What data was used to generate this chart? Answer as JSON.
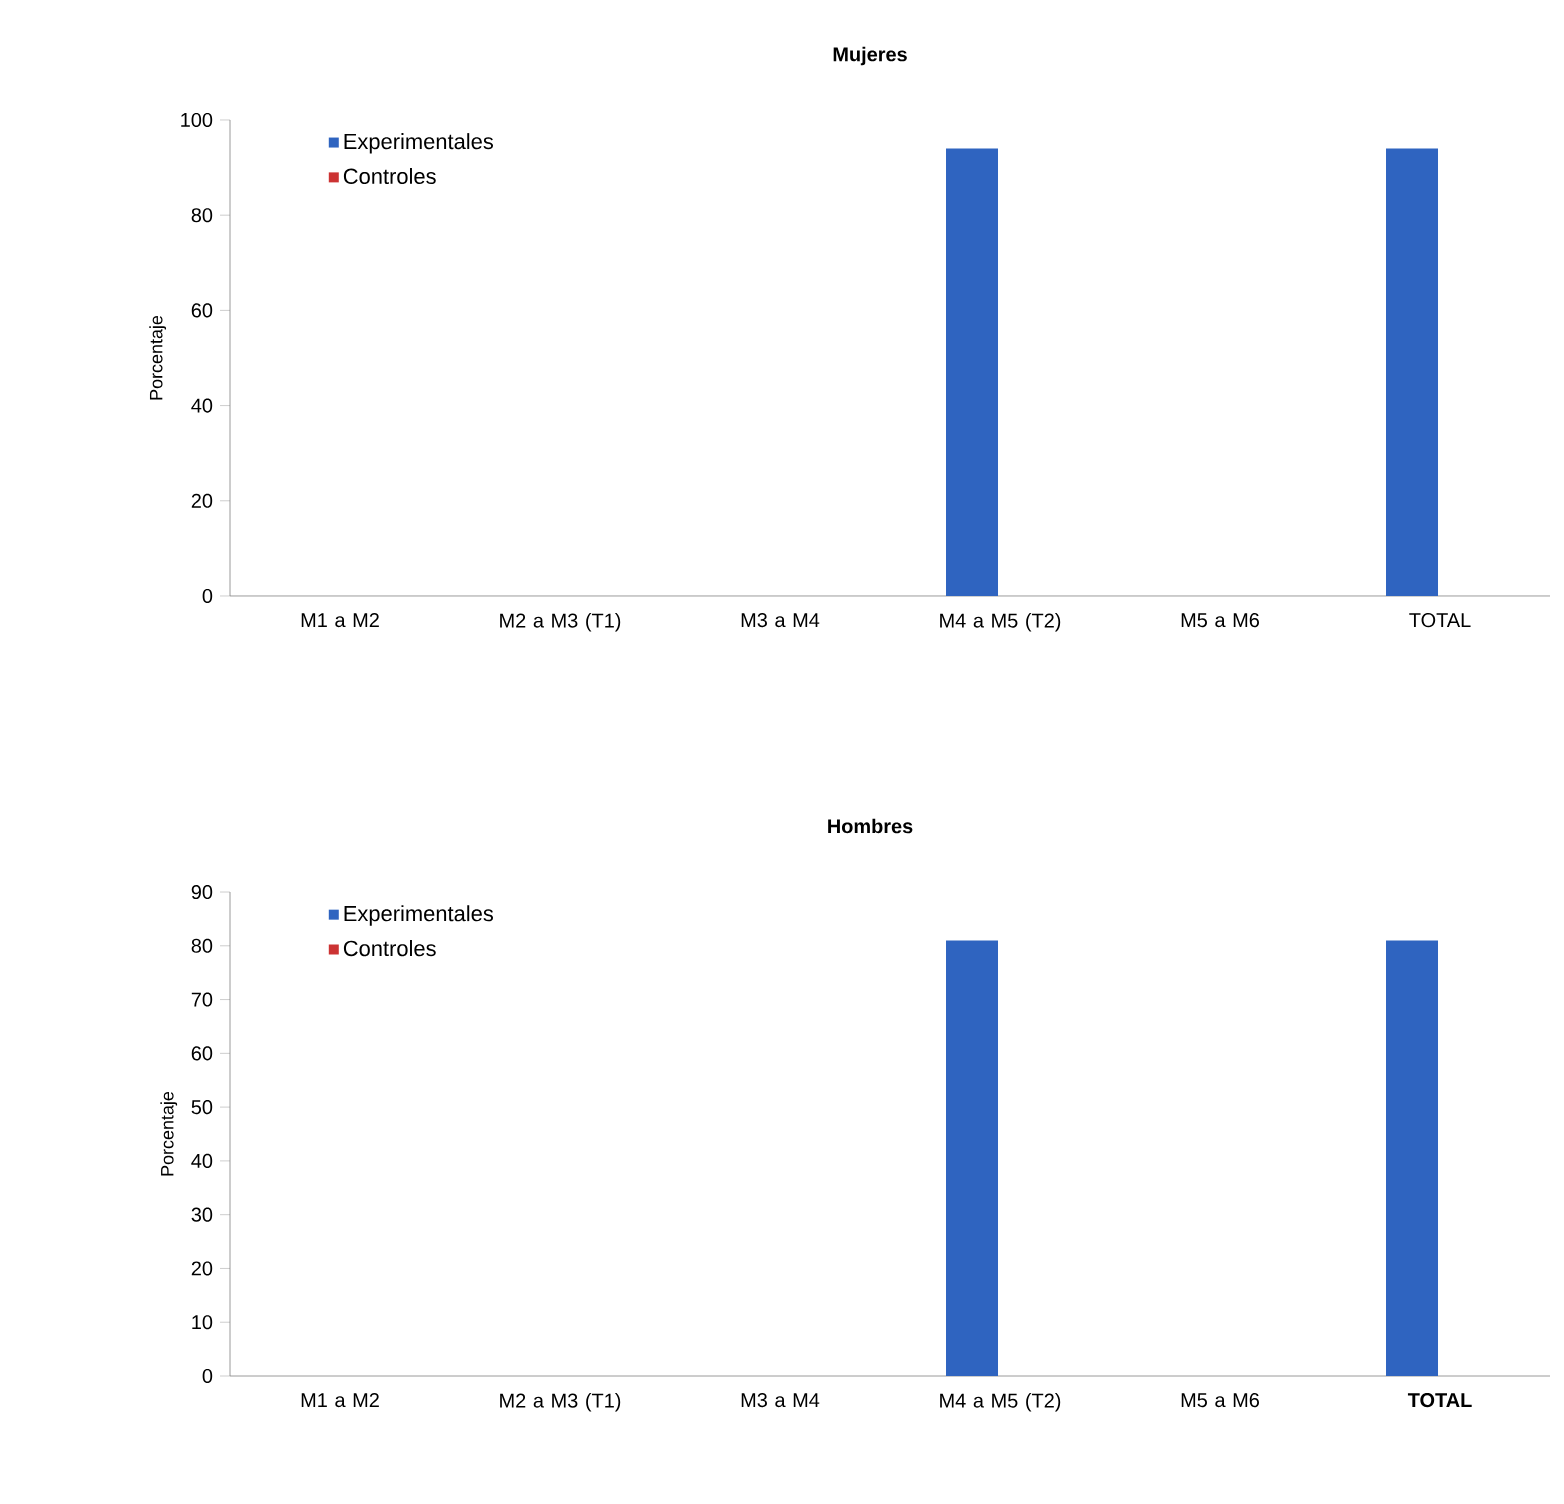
{
  "chart_data": [
    {
      "type": "bar",
      "title": "Mujeres",
      "ylabel": "Porcentaje",
      "categories": [
        "M1 a M2",
        "M2 a M3 (T1)",
        "M3 a M4",
        "M4 a M5 (T2)",
        "M5 a M6",
        "TOTAL"
      ],
      "series": [
        {
          "name": "Experimentales",
          "color": "#2f64c0",
          "values": [
            0,
            0,
            0,
            94,
            0,
            94
          ]
        },
        {
          "name": "Controles",
          "color": "#cc3333",
          "values": [
            0,
            0,
            0,
            0,
            0,
            0
          ]
        }
      ],
      "ylim": [
        0,
        100
      ],
      "yticks": [
        0,
        20,
        40,
        60,
        80,
        100
      ],
      "legend": "top left"
    },
    {
      "type": "bar",
      "title": "Hombres",
      "ylabel": "Porcentaje",
      "categories": [
        "M1 a M2",
        "M2 a M3 (T1)",
        "M3 a M4",
        "M4 a M5 (T2)",
        "M5 a M6",
        "**TOTAL**"
      ],
      "series": [
        {
          "name": "Experimentales",
          "color": "#2f64c0",
          "values": [
            0,
            0,
            0,
            81,
            0,
            81
          ]
        },
        {
          "name": "Controles",
          "color": "#cc3333",
          "values": [
            0,
            0,
            0,
            0,
            0,
            0
          ]
        }
      ],
      "ylim": [
        0,
        90
      ],
      "yticks": [
        0,
        10,
        20,
        30,
        40,
        50,
        60,
        70,
        80,
        90
      ],
      "legend": "top left"
    }
  ]
}
